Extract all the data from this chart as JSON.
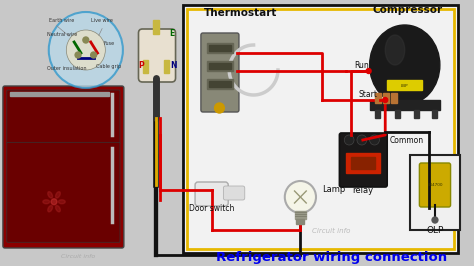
{
  "bg_color": "#c8c8c8",
  "diagram_box_facecolor": "#f2f2f2",
  "diagram_border_color": "#e6b800",
  "diagram_border2_color": "#111111",
  "title_text": "Refrigerator wiring connection",
  "title_color": "#0000ee",
  "title_fontsize": 9.5,
  "wire_red": "#dd0000",
  "wire_black": "#111111",
  "wire_yellow": "#ddaa00",
  "labels": {
    "thermostart": "Thermostart",
    "compressor": "Compressor",
    "start": "Start",
    "run": "Run",
    "common": "Common",
    "relay": "relay",
    "olp": "OLP",
    "door_switch": "Door switch",
    "lamp": "Lamp",
    "circuit_info1": "Circuit info",
    "circuit_info2": "Circuit info"
  },
  "plug_labels": {
    "earth": "Earth wire",
    "live": "Live wire",
    "neutral": "Neutral wire",
    "outer": "Outer insulation",
    "fuse": "Fuse",
    "cable_grip": "Cable grip",
    "e": "E",
    "p": "P",
    "n": "N"
  },
  "fridge_color": "#8b0000",
  "fridge_dark": "#6a0000",
  "plug_circle_color": "#b8d8e8",
  "plug_body_color": "#e8e0d0",
  "compressor_color": "#111111",
  "relay_color": "#1a1a1a",
  "olp_yellow": "#ccaa00",
  "door_switch_color": "#e0e0e0",
  "lamp_color": "#f5f5e8"
}
